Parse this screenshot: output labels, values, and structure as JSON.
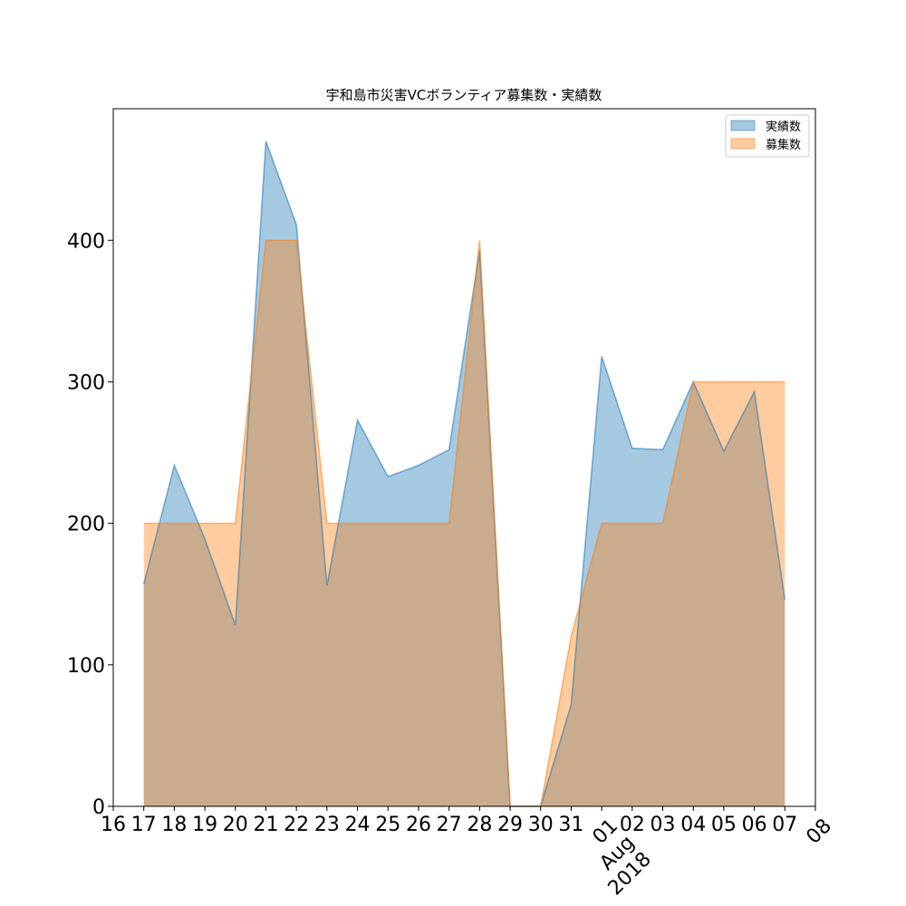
{
  "chart_data": {
    "type": "area",
    "title": "宇和島市災害VCボランティア募集数・実績数",
    "xlabel": "",
    "ylabel": "",
    "x_start": "2018-07-17",
    "x_end": "2018-08-07",
    "xlim": [
      "2018-07-16",
      "2018-08-08"
    ],
    "ylim": [
      0,
      493
    ],
    "yticks": [
      0,
      100,
      200,
      300,
      400
    ],
    "x_tick_labels": [
      "16",
      "17",
      "18",
      "19",
      "20",
      "21",
      "22",
      "23",
      "24",
      "25",
      "26",
      "27",
      "28",
      "29",
      "30",
      "31",
      "01",
      "Aug",
      "2018",
      "02",
      "03",
      "04",
      "05",
      "06",
      "07",
      "08"
    ],
    "legend_placement": "top-right",
    "grid": false,
    "series": [
      {
        "name": "実績数",
        "color": "#1f77b4",
        "values": [
          157,
          241,
          189,
          128,
          470,
          411,
          156,
          273,
          233,
          241,
          252,
          393,
          0,
          0,
          72,
          318,
          253,
          252,
          300,
          251,
          293,
          146
        ]
      },
      {
        "name": "募集数",
        "color": "#ff7f0e",
        "values": [
          200,
          200,
          200,
          200,
          400,
          400,
          200,
          200,
          200,
          200,
          200,
          400,
          0,
          0,
          120,
          200,
          200,
          200,
          300,
          300,
          300,
          300
        ]
      }
    ]
  }
}
